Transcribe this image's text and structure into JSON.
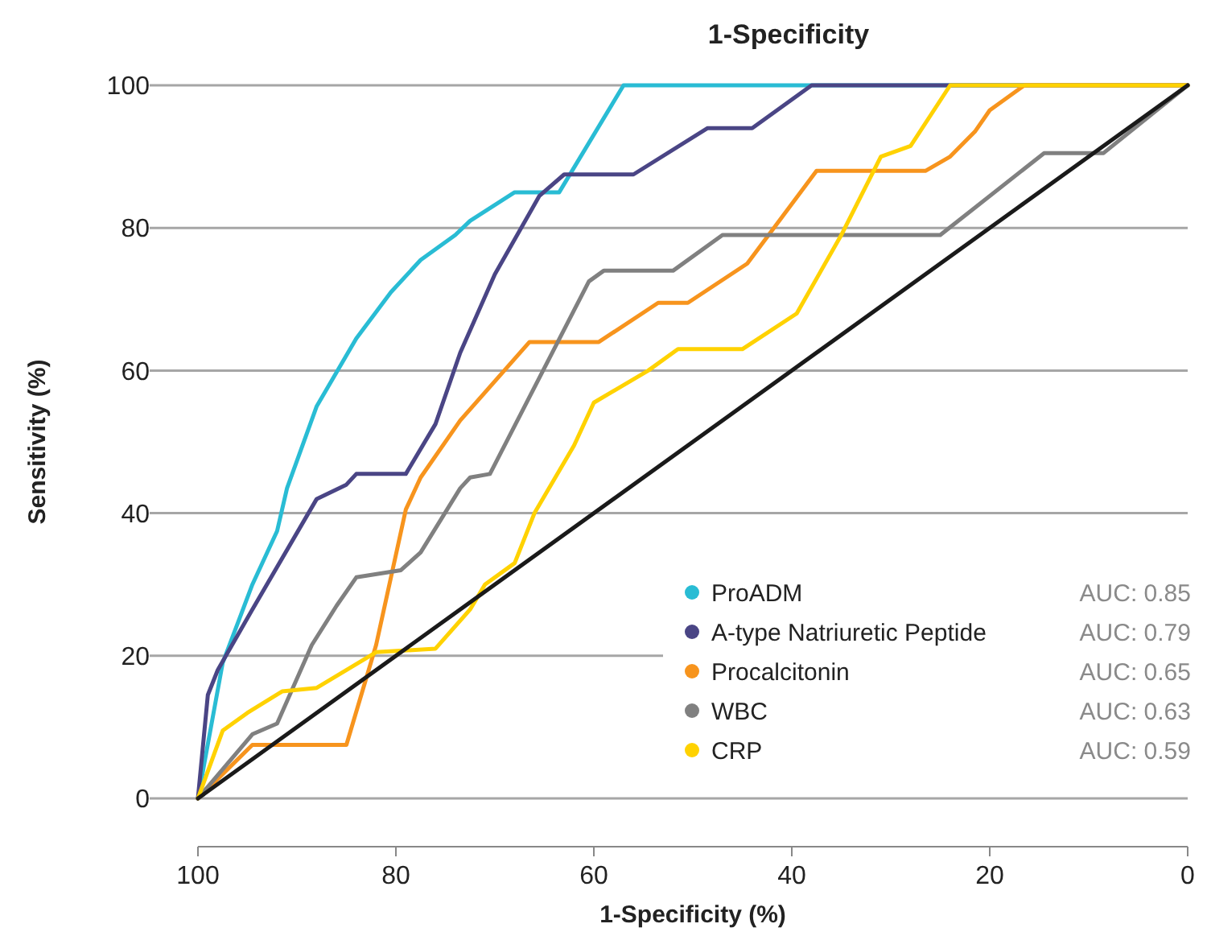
{
  "chart_data": {
    "type": "line",
    "title": "1-Specificity",
    "xlabel": "1-Specificity (%)",
    "ylabel": "Sensitivity (%)",
    "xlim": [
      100,
      0
    ],
    "xticks": [
      100,
      80,
      60,
      40,
      20,
      0
    ],
    "ylim": [
      0,
      100
    ],
    "yticks": [
      0,
      20,
      40,
      60,
      80,
      100
    ],
    "grid": "y",
    "legend": "bottom right",
    "line_style": "solid",
    "annotations": [
      "AUC: 0.85",
      "AUC: 0.79",
      "AUC: 0.65",
      "AUC: 0.63",
      "AUC: 0.59"
    ],
    "series": [
      {
        "name": "ProADM",
        "color": "#29bcd4",
        "x": [
          100,
          97.5,
          94.5,
          92,
          91,
          88,
          84,
          80.5,
          77.5,
          74,
          72.5,
          68,
          63.5,
          57,
          0
        ],
        "values": [
          0,
          19,
          30,
          37.5,
          43.5,
          55,
          64.5,
          71,
          75.5,
          79,
          81,
          85,
          85,
          100,
          100
        ]
      },
      {
        "name": "A-type Natriuretic Peptide",
        "color": "#4a4585",
        "x": [
          100,
          99,
          98,
          94.5,
          88,
          85,
          84,
          79,
          76,
          73.5,
          70,
          65.5,
          63,
          56,
          48.5,
          44,
          38,
          0
        ],
        "values": [
          0,
          14.5,
          18,
          26.5,
          42,
          44,
          45.5,
          45.5,
          52.5,
          62.5,
          73.5,
          84.5,
          87.5,
          87.5,
          94,
          94,
          100,
          100
        ]
      },
      {
        "name": "Procalcitonin",
        "color": "#f7941d",
        "x": [
          100,
          94.5,
          85,
          82,
          79,
          77.5,
          73.5,
          66.5,
          59.5,
          53.5,
          50.5,
          44.5,
          37.5,
          26.5,
          24,
          21.5,
          20,
          16.5,
          0
        ],
        "values": [
          0,
          7.5,
          7.5,
          21.5,
          40.5,
          45,
          53,
          64,
          64,
          69.5,
          69.5,
          75,
          88,
          88,
          90,
          93.5,
          96.5,
          100,
          100
        ]
      },
      {
        "name": "WBC",
        "color": "#808080",
        "x": [
          100,
          94.5,
          92,
          88.5,
          86,
          84,
          79.5,
          77.5,
          73.5,
          72.5,
          70.5,
          60.5,
          59,
          52,
          47,
          25,
          14.5,
          8.5,
          0
        ],
        "values": [
          0,
          9,
          10.5,
          21.5,
          27,
          31,
          32,
          34.5,
          43.5,
          45,
          45.5,
          72.5,
          74,
          74,
          79,
          79,
          90.5,
          90.5,
          100
        ]
      },
      {
        "name": "CRP",
        "color": "#ffd200",
        "x": [
          100,
          97.5,
          95,
          91.5,
          88,
          82,
          76,
          72.5,
          71,
          68,
          66,
          62,
          60,
          54.5,
          51.5,
          45,
          39.5,
          35,
          31,
          28,
          24,
          0
        ],
        "values": [
          0,
          9.5,
          12,
          15,
          15.5,
          20.5,
          21,
          26.5,
          30,
          33,
          40,
          49.5,
          55.5,
          60,
          63,
          63,
          68,
          79,
          90,
          91.5,
          100,
          100
        ]
      },
      {
        "color": "#1a1a1a",
        "x": [
          100,
          0
        ],
        "values": [
          0,
          100
        ]
      }
    ]
  }
}
